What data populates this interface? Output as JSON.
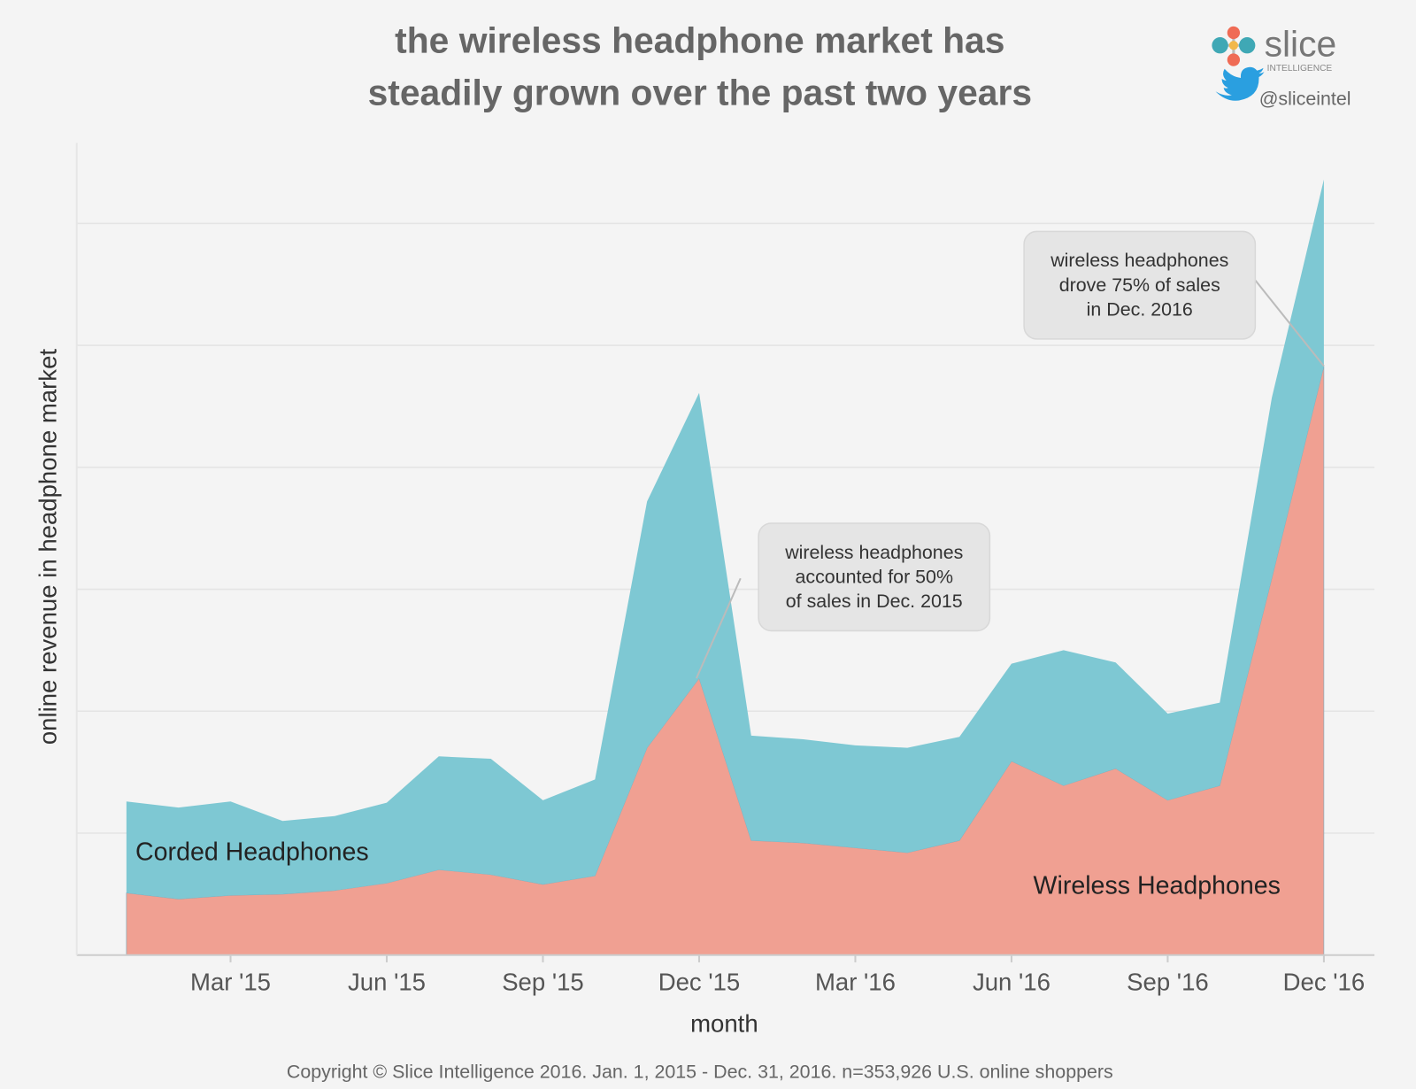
{
  "chart_data": {
    "type": "area",
    "stacked": true,
    "title": "the wireless headphone market has steadily grown over the past two years",
    "title_lines": [
      "the wireless headphone market has",
      "steadily grown over the past two years"
    ],
    "xlabel": "month",
    "ylabel": "online revenue in headphone market",
    "x": [
      "Jan '15",
      "Feb '15",
      "Mar '15",
      "Apr '15",
      "May '15",
      "Jun '15",
      "Jul '15",
      "Aug '15",
      "Sep '15",
      "Oct '15",
      "Nov '15",
      "Dec '15",
      "Jan '16",
      "Feb '16",
      "Mar '16",
      "Apr '16",
      "May '16",
      "Jun '16",
      "Jul '16",
      "Aug '16",
      "Sep '16",
      "Oct '16",
      "Nov '16",
      "Dec '16"
    ],
    "xticks": [
      {
        "index": 2,
        "label": "Mar '15"
      },
      {
        "index": 5,
        "label": "Jun '15"
      },
      {
        "index": 8,
        "label": "Sep '15"
      },
      {
        "index": 11,
        "label": "Dec '15"
      },
      {
        "index": 14,
        "label": "Mar '16"
      },
      {
        "index": 17,
        "label": "Jun '16"
      },
      {
        "index": 20,
        "label": "Sep '16"
      },
      {
        "index": 23,
        "label": "Dec '16"
      }
    ],
    "ylim": [
      0,
      6.66
    ],
    "y_tick_labels_shown": false,
    "grid": true,
    "series": [
      {
        "name": "Wireless Headphones",
        "color": "#f0a092",
        "values": [
          0.51,
          0.46,
          0.49,
          0.5,
          0.53,
          0.59,
          0.7,
          0.66,
          0.58,
          0.65,
          1.7,
          2.27,
          0.94,
          0.92,
          0.88,
          0.84,
          0.94,
          1.59,
          1.39,
          1.53,
          1.27,
          1.39,
          3.09,
          4.83
        ]
      },
      {
        "name": "Corded Headphones",
        "color": "#7ec8d3",
        "values": [
          0.75,
          0.75,
          0.77,
          0.6,
          0.61,
          0.66,
          0.93,
          0.95,
          0.69,
          0.79,
          2.02,
          2.34,
          0.86,
          0.85,
          0.84,
          0.86,
          0.85,
          0.8,
          1.11,
          0.87,
          0.71,
          0.68,
          1.48,
          1.53
        ]
      }
    ],
    "annotations": [
      {
        "lines": [
          "wireless headphones",
          "accounted for 50%",
          "of sales in Dec. 2015"
        ],
        "point_index": 11
      },
      {
        "lines": [
          "wireless headphones",
          "drove 75% of sales",
          "in Dec. 2016"
        ],
        "point_index": 23
      }
    ]
  },
  "brand": {
    "logo_text": "slice",
    "logo_subtext": "INTELLIGENCE",
    "twitter_handle": "@sliceintel"
  },
  "footer": "Copyright © Slice Intelligence 2016. Jan. 1, 2015 - Dec. 31, 2016. n=353,926 U.S. online shoppers"
}
